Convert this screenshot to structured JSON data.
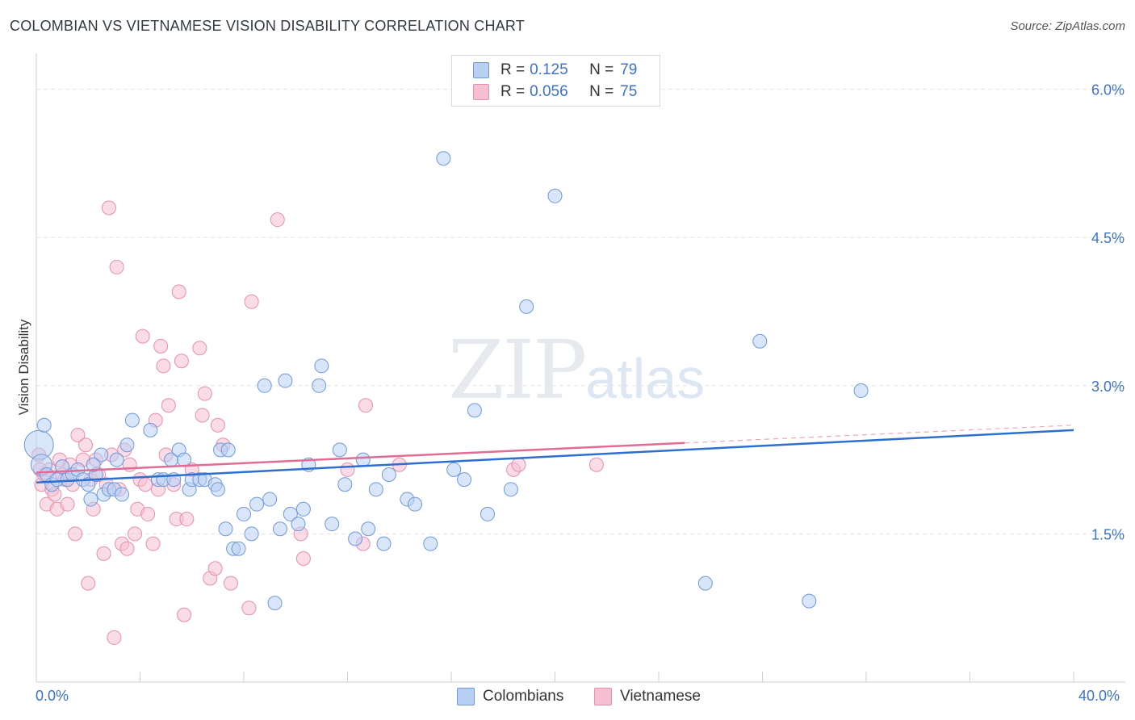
{
  "header": {
    "title": "COLOMBIAN VS VIETNAMESE VISION DISABILITY CORRELATION CHART",
    "source": "Source: ZipAtlas.com"
  },
  "watermark": {
    "zip": "ZIP",
    "atlas": "atlas"
  },
  "legend": {
    "rows": [
      {
        "r_label": "R =",
        "r_value": "0.125",
        "n_label": "N =",
        "n_value": "79"
      },
      {
        "r_label": "R =",
        "r_value": "0.056",
        "n_label": "N =",
        "n_value": "75"
      }
    ]
  },
  "bottom_legend": {
    "colombians": "Colombians",
    "vietnamese": "Vietnamese"
  },
  "colors": {
    "blue_fill": "#b9d0f2",
    "blue_stroke": "#6f99d9",
    "blue_line": "#2d6fcf",
    "pink_fill": "#f6c0d2",
    "pink_stroke": "#e58fae",
    "pink_line": "#e16c98",
    "axis_text": "#3d72c7",
    "grid": "#e2e2e2"
  },
  "chart_data": {
    "type": "scatter",
    "title": "COLOMBIAN VS VIETNAMESE VISION DISABILITY CORRELATION CHART",
    "xlabel": "",
    "ylabel": "Vision Disability",
    "xlim": [
      0,
      40
    ],
    "ylim": [
      0,
      6.25
    ],
    "x_tick_labels": [
      "0.0%",
      "40.0%"
    ],
    "y_ticks": [
      1.5,
      3.0,
      4.5,
      6.0
    ],
    "y_tick_labels": [
      "1.5%",
      "3.0%",
      "4.5%",
      "6.0%"
    ],
    "series": [
      {
        "name": "Colombians",
        "r": 0.125,
        "n": 79,
        "trend": {
          "x0": 0,
          "y0": 2.02,
          "x1": 40,
          "y1": 2.55
        },
        "points": [
          [
            0.1,
            2.4
          ],
          [
            0.2,
            2.2
          ],
          [
            0.4,
            2.1
          ],
          [
            0.6,
            2.0
          ],
          [
            0.8,
            2.05
          ],
          [
            1.0,
            2.18
          ],
          [
            1.2,
            2.05
          ],
          [
            1.4,
            2.1
          ],
          [
            1.6,
            2.15
          ],
          [
            1.8,
            2.05
          ],
          [
            2.0,
            2.0
          ],
          [
            2.1,
            1.85
          ],
          [
            2.3,
            2.1
          ],
          [
            2.5,
            2.3
          ],
          [
            2.6,
            1.9
          ],
          [
            2.8,
            1.95
          ],
          [
            3.0,
            1.95
          ],
          [
            3.1,
            2.25
          ],
          [
            3.3,
            1.9
          ],
          [
            3.5,
            2.4
          ],
          [
            3.7,
            2.65
          ],
          [
            4.4,
            2.55
          ],
          [
            4.7,
            2.05
          ],
          [
            4.9,
            2.05
          ],
          [
            5.2,
            2.25
          ],
          [
            5.3,
            2.05
          ],
          [
            5.5,
            2.35
          ],
          [
            5.7,
            2.25
          ],
          [
            5.9,
            1.95
          ],
          [
            6.0,
            2.05
          ],
          [
            6.3,
            2.05
          ],
          [
            6.5,
            2.05
          ],
          [
            6.9,
            2.0
          ],
          [
            7.0,
            1.95
          ],
          [
            7.1,
            2.35
          ],
          [
            7.4,
            2.35
          ],
          [
            7.3,
            1.55
          ],
          [
            7.6,
            1.35
          ],
          [
            7.8,
            1.35
          ],
          [
            8.0,
            1.7
          ],
          [
            8.3,
            1.5
          ],
          [
            8.5,
            1.8
          ],
          [
            8.8,
            3.0
          ],
          [
            9.0,
            1.85
          ],
          [
            9.2,
            0.8
          ],
          [
            9.4,
            1.55
          ],
          [
            9.6,
            3.05
          ],
          [
            9.8,
            1.7
          ],
          [
            10.1,
            1.6
          ],
          [
            10.3,
            1.75
          ],
          [
            10.5,
            2.2
          ],
          [
            10.9,
            3.0
          ],
          [
            11.0,
            3.2
          ],
          [
            11.4,
            1.6
          ],
          [
            11.7,
            2.35
          ],
          [
            11.9,
            2.0
          ],
          [
            12.3,
            1.45
          ],
          [
            12.6,
            2.25
          ],
          [
            12.8,
            1.55
          ],
          [
            13.1,
            1.95
          ],
          [
            13.4,
            1.4
          ],
          [
            13.6,
            2.1
          ],
          [
            14.3,
            1.85
          ],
          [
            14.6,
            1.8
          ],
          [
            15.2,
            1.4
          ],
          [
            15.7,
            5.3
          ],
          [
            16.1,
            2.15
          ],
          [
            16.5,
            2.05
          ],
          [
            16.9,
            2.75
          ],
          [
            17.4,
            1.7
          ],
          [
            18.3,
            1.95
          ],
          [
            18.9,
            3.8
          ],
          [
            20.0,
            4.92
          ],
          [
            25.8,
            1.0
          ],
          [
            27.9,
            3.45
          ],
          [
            29.8,
            0.82
          ],
          [
            31.8,
            2.95
          ],
          [
            0.3,
            2.6
          ],
          [
            2.2,
            2.2
          ]
        ]
      },
      {
        "name": "Vietnamese",
        "r": 0.056,
        "n": 75,
        "trend": {
          "x0": 0,
          "y0": 2.12,
          "x1": 25,
          "y1": 2.42
        },
        "trend_dashed_to": {
          "x": 40,
          "y": 2.6
        },
        "points": [
          [
            0.1,
            2.3
          ],
          [
            0.2,
            2.0
          ],
          [
            0.3,
            2.1
          ],
          [
            0.4,
            1.8
          ],
          [
            0.5,
            2.15
          ],
          [
            0.6,
            1.95
          ],
          [
            0.7,
            1.9
          ],
          [
            0.8,
            1.75
          ],
          [
            0.9,
            2.25
          ],
          [
            1.0,
            2.1
          ],
          [
            1.1,
            2.05
          ],
          [
            1.2,
            1.8
          ],
          [
            1.3,
            2.2
          ],
          [
            1.4,
            2.0
          ],
          [
            1.5,
            1.5
          ],
          [
            1.6,
            2.5
          ],
          [
            1.8,
            2.25
          ],
          [
            1.9,
            2.4
          ],
          [
            2.0,
            1.0
          ],
          [
            2.1,
            2.05
          ],
          [
            2.2,
            1.75
          ],
          [
            2.3,
            2.25
          ],
          [
            2.4,
            2.1
          ],
          [
            2.6,
            1.3
          ],
          [
            2.7,
            2.0
          ],
          [
            2.8,
            4.8
          ],
          [
            2.9,
            2.3
          ],
          [
            3.0,
            0.45
          ],
          [
            3.1,
            4.2
          ],
          [
            3.2,
            1.95
          ],
          [
            3.3,
            1.4
          ],
          [
            3.4,
            2.35
          ],
          [
            3.5,
            1.35
          ],
          [
            3.6,
            2.2
          ],
          [
            3.8,
            1.5
          ],
          [
            3.9,
            1.75
          ],
          [
            4.0,
            2.05
          ],
          [
            4.1,
            3.5
          ],
          [
            4.2,
            2.0
          ],
          [
            4.3,
            1.7
          ],
          [
            4.5,
            1.4
          ],
          [
            4.6,
            2.65
          ],
          [
            4.7,
            1.95
          ],
          [
            4.8,
            3.4
          ],
          [
            4.9,
            3.2
          ],
          [
            5.0,
            2.3
          ],
          [
            5.1,
            2.8
          ],
          [
            5.3,
            2.0
          ],
          [
            5.4,
            1.65
          ],
          [
            5.5,
            3.95
          ],
          [
            5.6,
            3.25
          ],
          [
            5.7,
            0.68
          ],
          [
            5.8,
            1.65
          ],
          [
            6.0,
            2.15
          ],
          [
            6.3,
            3.38
          ],
          [
            6.4,
            2.7
          ],
          [
            6.5,
            2.92
          ],
          [
            6.7,
            1.05
          ],
          [
            6.9,
            1.15
          ],
          [
            7.0,
            2.6
          ],
          [
            7.2,
            2.4
          ],
          [
            7.5,
            1.0
          ],
          [
            8.2,
            0.75
          ],
          [
            8.3,
            3.85
          ],
          [
            9.3,
            4.68
          ],
          [
            10.2,
            1.5
          ],
          [
            10.3,
            1.25
          ],
          [
            12.0,
            2.15
          ],
          [
            12.6,
            1.4
          ],
          [
            12.7,
            2.8
          ],
          [
            14.0,
            2.2
          ],
          [
            18.4,
            2.15
          ],
          [
            18.6,
            2.2
          ],
          [
            21.6,
            2.2
          ],
          [
            0.15,
            2.15
          ]
        ]
      }
    ]
  }
}
